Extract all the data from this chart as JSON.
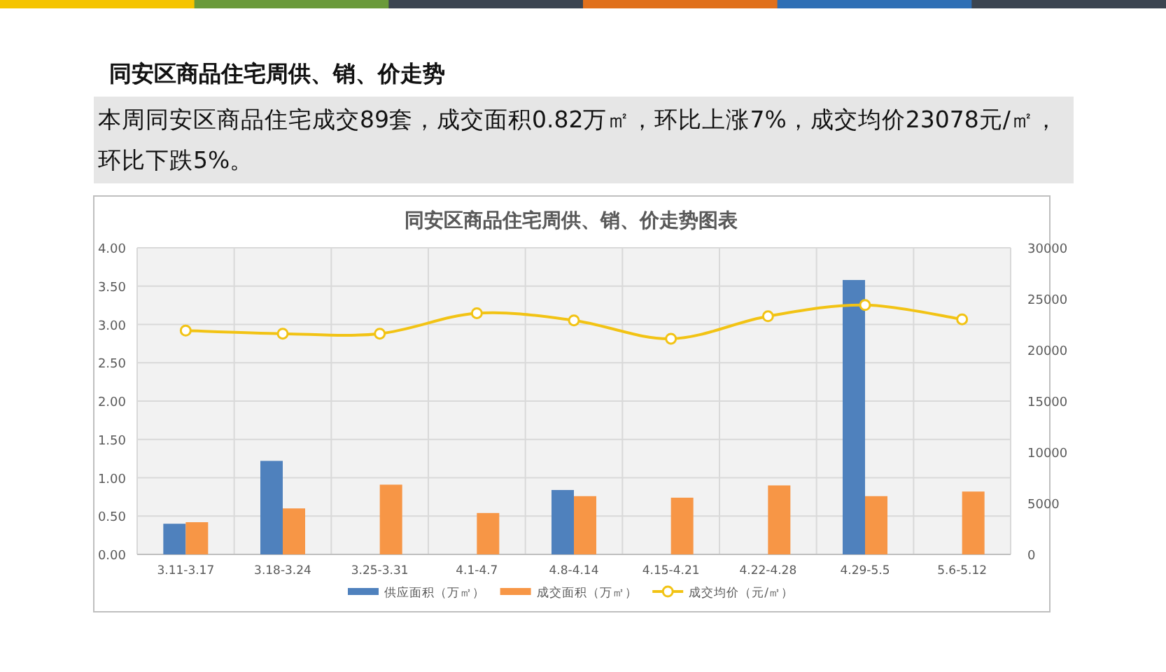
{
  "chart_data": {
    "type": "bar",
    "title": "同安区商品住宅周供、销、价走势图表",
    "annotations": [
      "同安区商品住宅周供、销、价走势",
      "本周同安区商品住宅成交89套，成交面积0.82万㎡，环比上涨7%，成交均价23078元/㎡，环比下跌5%。"
    ],
    "categories": [
      "3.11-3.17",
      "3.18-3.24",
      "3.25-3.31",
      "4.1-4.7",
      "4.8-4.14",
      "4.15-4.21",
      "4.22-4.28",
      "4.29-5.5",
      "5.6-5.12"
    ],
    "series": [
      {
        "name": "供应面积（万㎡）",
        "color": "#4f81bd",
        "values": [
          0.4,
          1.22,
          null,
          null,
          0.84,
          null,
          null,
          3.58,
          null
        ]
      },
      {
        "name": "成交面积（万㎡）",
        "color": "#f79646",
        "values": [
          0.42,
          0.6,
          0.91,
          0.54,
          0.76,
          0.74,
          0.9,
          0.76,
          0.82
        ]
      },
      {
        "name": "成交均价（元/㎡）",
        "color": "#f2c314",
        "type": "line",
        "axis": "y2",
        "values": [
          21900,
          21600,
          21600,
          23600,
          22900,
          21100,
          23300,
          24400,
          23000
        ]
      }
    ],
    "ylim": [
      0,
      4
    ],
    "yticks": [
      {
        "value": 0,
        "label": "0.00"
      },
      {
        "value": 0.5,
        "label": "0.50"
      },
      {
        "value": 1,
        "label": "1.00"
      },
      {
        "value": 1.5,
        "label": "1.50"
      },
      {
        "value": 2,
        "label": "2.00"
      },
      {
        "value": 2.5,
        "label": "2.50"
      },
      {
        "value": 3,
        "label": "3.00"
      },
      {
        "value": 3.5,
        "label": "3.50"
      },
      {
        "value": 4,
        "label": "4.00"
      }
    ],
    "y2lim": [
      0,
      30000
    ],
    "y2ticks": [
      0,
      5000,
      10000,
      15000,
      20000,
      25000,
      30000
    ],
    "grid": true,
    "legend": "bottom",
    "marker": "circle"
  }
}
